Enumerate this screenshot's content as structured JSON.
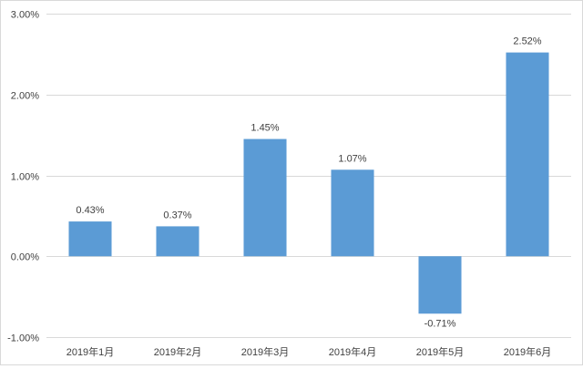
{
  "chart_data": {
    "type": "bar",
    "title": "",
    "xlabel": "",
    "ylabel": "",
    "categories": [
      "2019年1月",
      "2019年2月",
      "2019年3月",
      "2019年4月",
      "2019年5月",
      "2019年6月"
    ],
    "values": [
      0.43,
      0.37,
      1.45,
      1.07,
      -0.71,
      2.52
    ],
    "data_labels": [
      "0.43%",
      "0.37%",
      "1.45%",
      "1.07%",
      "-0.71%",
      "2.52%"
    ],
    "y_ticks": [
      3.0,
      2.0,
      1.0,
      0.0,
      -1.0
    ],
    "y_tick_labels": [
      "3.00%",
      "2.00%",
      "1.00%",
      "0.00%",
      "-1.00%"
    ],
    "ylim": [
      -1.0,
      3.0
    ],
    "grid": true,
    "legend": "none",
    "bar_color": "#5b9bd5",
    "grid_color": "#d9d9d9"
  }
}
